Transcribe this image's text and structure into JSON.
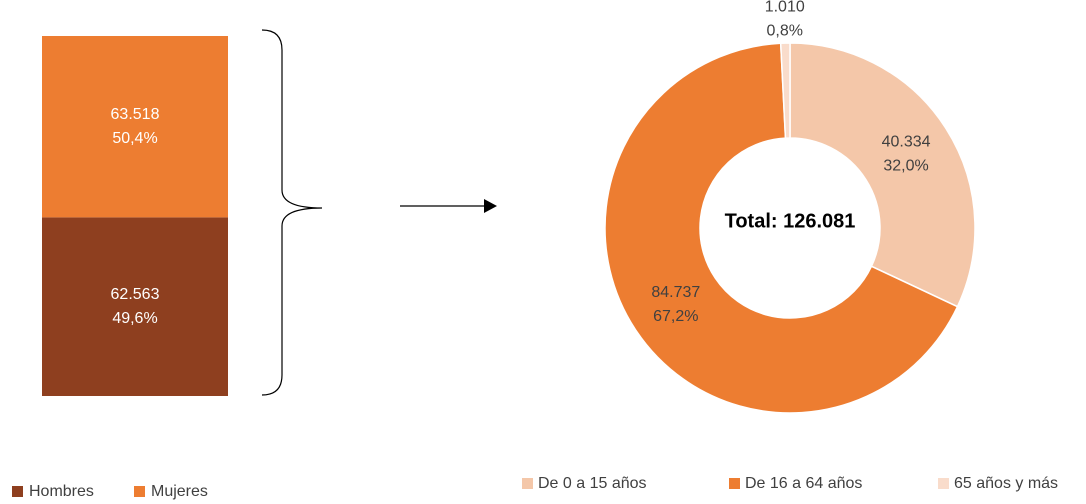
{
  "chart_data": [
    {
      "type": "stacked_bar",
      "series": [
        {
          "name": "Hombres",
          "color": "#8e3f1f",
          "values": [
            62563
          ],
          "value_labels": [
            "62.563"
          ],
          "shares": [
            49.6
          ],
          "share_labels": [
            "49,6%"
          ]
        },
        {
          "name": "Mujeres",
          "color": "#ed7d31",
          "values": [
            63518
          ],
          "value_labels": [
            "63.518"
          ],
          "shares": [
            50.4
          ],
          "share_labels": [
            "50,4%"
          ]
        }
      ]
    },
    {
      "type": "donut",
      "categories": [
        "De 0 a 15 años",
        "De 16 a 64 años",
        "65 años y más"
      ],
      "values": [
        40334,
        84737,
        1010
      ],
      "value_labels": [
        "40.334",
        "84.737",
        "1.010"
      ],
      "shares": [
        32.0,
        67.2,
        0.8
      ],
      "share_labels": [
        "32,0%",
        "67,2%",
        "0,8%"
      ],
      "colors": [
        "#f4c7a9",
        "#ed7d31",
        "#f9dccb"
      ],
      "center_label": "Total: 126.081"
    }
  ]
}
